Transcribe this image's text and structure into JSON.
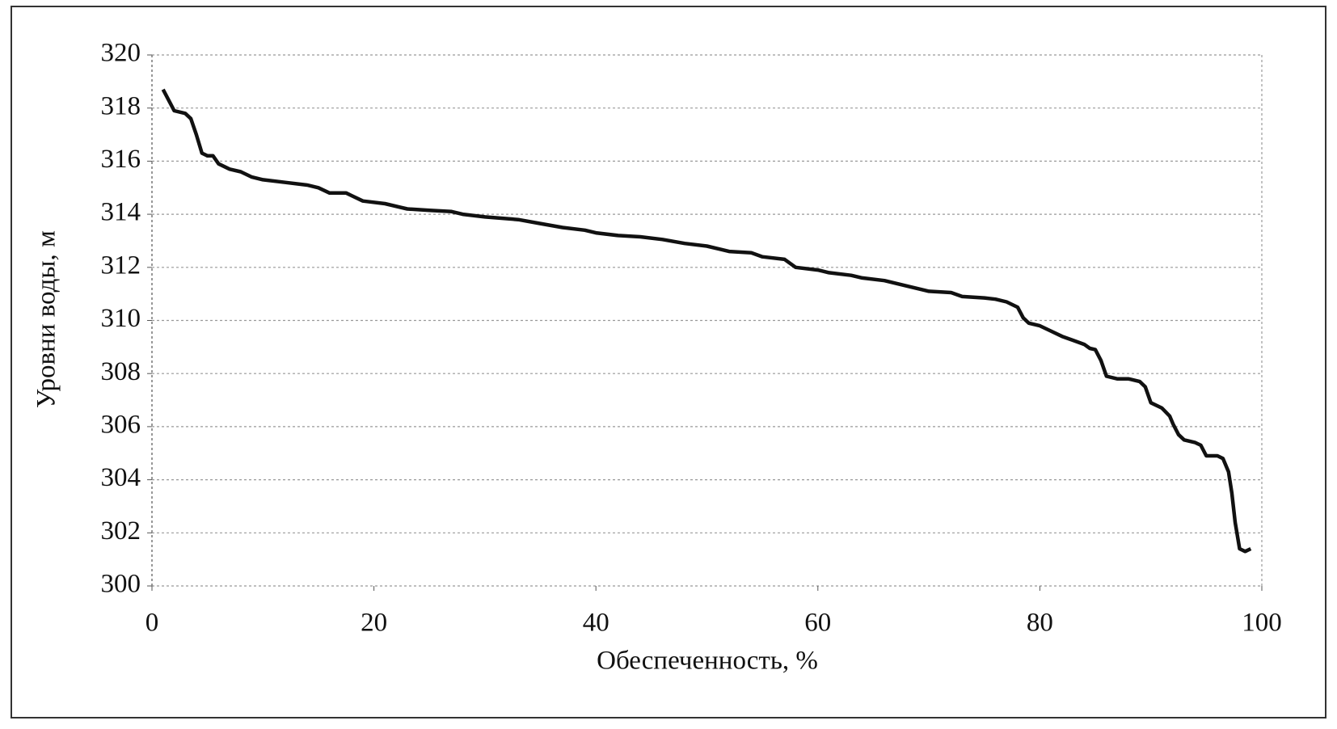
{
  "chart_data": {
    "type": "line",
    "x_label": "Обеспеченность, %",
    "y_label": "Уровни воды, м",
    "x": [
      1,
      1.5,
      2,
      3,
      3.5,
      4,
      4.5,
      5,
      5.5,
      6,
      7,
      8,
      9,
      10,
      12,
      14,
      15,
      16,
      17.5,
      18,
      19,
      21,
      23,
      25,
      27,
      28,
      30,
      33,
      35,
      37,
      39,
      40,
      42,
      44,
      46,
      48,
      50,
      52,
      54,
      55,
      57,
      58,
      60,
      61,
      63,
      64,
      66,
      68,
      70,
      72,
      73,
      75,
      76,
      77,
      78,
      78.5,
      79,
      80,
      81,
      82,
      83,
      84,
      84.5,
      85,
      85.5,
      86,
      87,
      88,
      89,
      89.5,
      90,
      91,
      91.7,
      92,
      92.5,
      93,
      94,
      94.5,
      95,
      96,
      96.5,
      97,
      97.3,
      97.6,
      98,
      98.5,
      99
    ],
    "values": [
      318.7,
      318.3,
      317.9,
      317.8,
      317.6,
      317,
      316.3,
      316.2,
      316.2,
      315.9,
      315.7,
      315.6,
      315.4,
      315.3,
      315.2,
      315.1,
      315,
      314.8,
      314.8,
      314.7,
      314.5,
      314.4,
      314.2,
      314.15,
      314.1,
      314,
      313.9,
      313.8,
      313.65,
      313.5,
      313.4,
      313.3,
      313.2,
      313.15,
      313.05,
      312.9,
      312.8,
      312.6,
      312.55,
      312.4,
      312.3,
      312,
      311.9,
      311.8,
      311.7,
      311.6,
      311.5,
      311.3,
      311.1,
      311.05,
      310.9,
      310.85,
      310.8,
      310.7,
      310.5,
      310.1,
      309.9,
      309.8,
      309.6,
      309.4,
      309.25,
      309.1,
      308.95,
      308.9,
      308.5,
      307.9,
      307.8,
      307.8,
      307.7,
      307.5,
      306.9,
      306.7,
      306.4,
      306.1,
      305.7,
      305.5,
      305.4,
      305.3,
      304.9,
      304.9,
      304.8,
      304.3,
      303.5,
      302.4,
      301.4,
      301.3,
      301.4
    ],
    "color": "#111111",
    "xlim": [
      0,
      100
    ],
    "xticks": [
      0,
      20,
      40,
      60,
      80,
      100
    ],
    "ylim": [
      300,
      320
    ],
    "yticks": [
      300,
      302,
      304,
      306,
      308,
      310,
      312,
      314,
      316,
      318,
      320
    ],
    "grid": true
  }
}
